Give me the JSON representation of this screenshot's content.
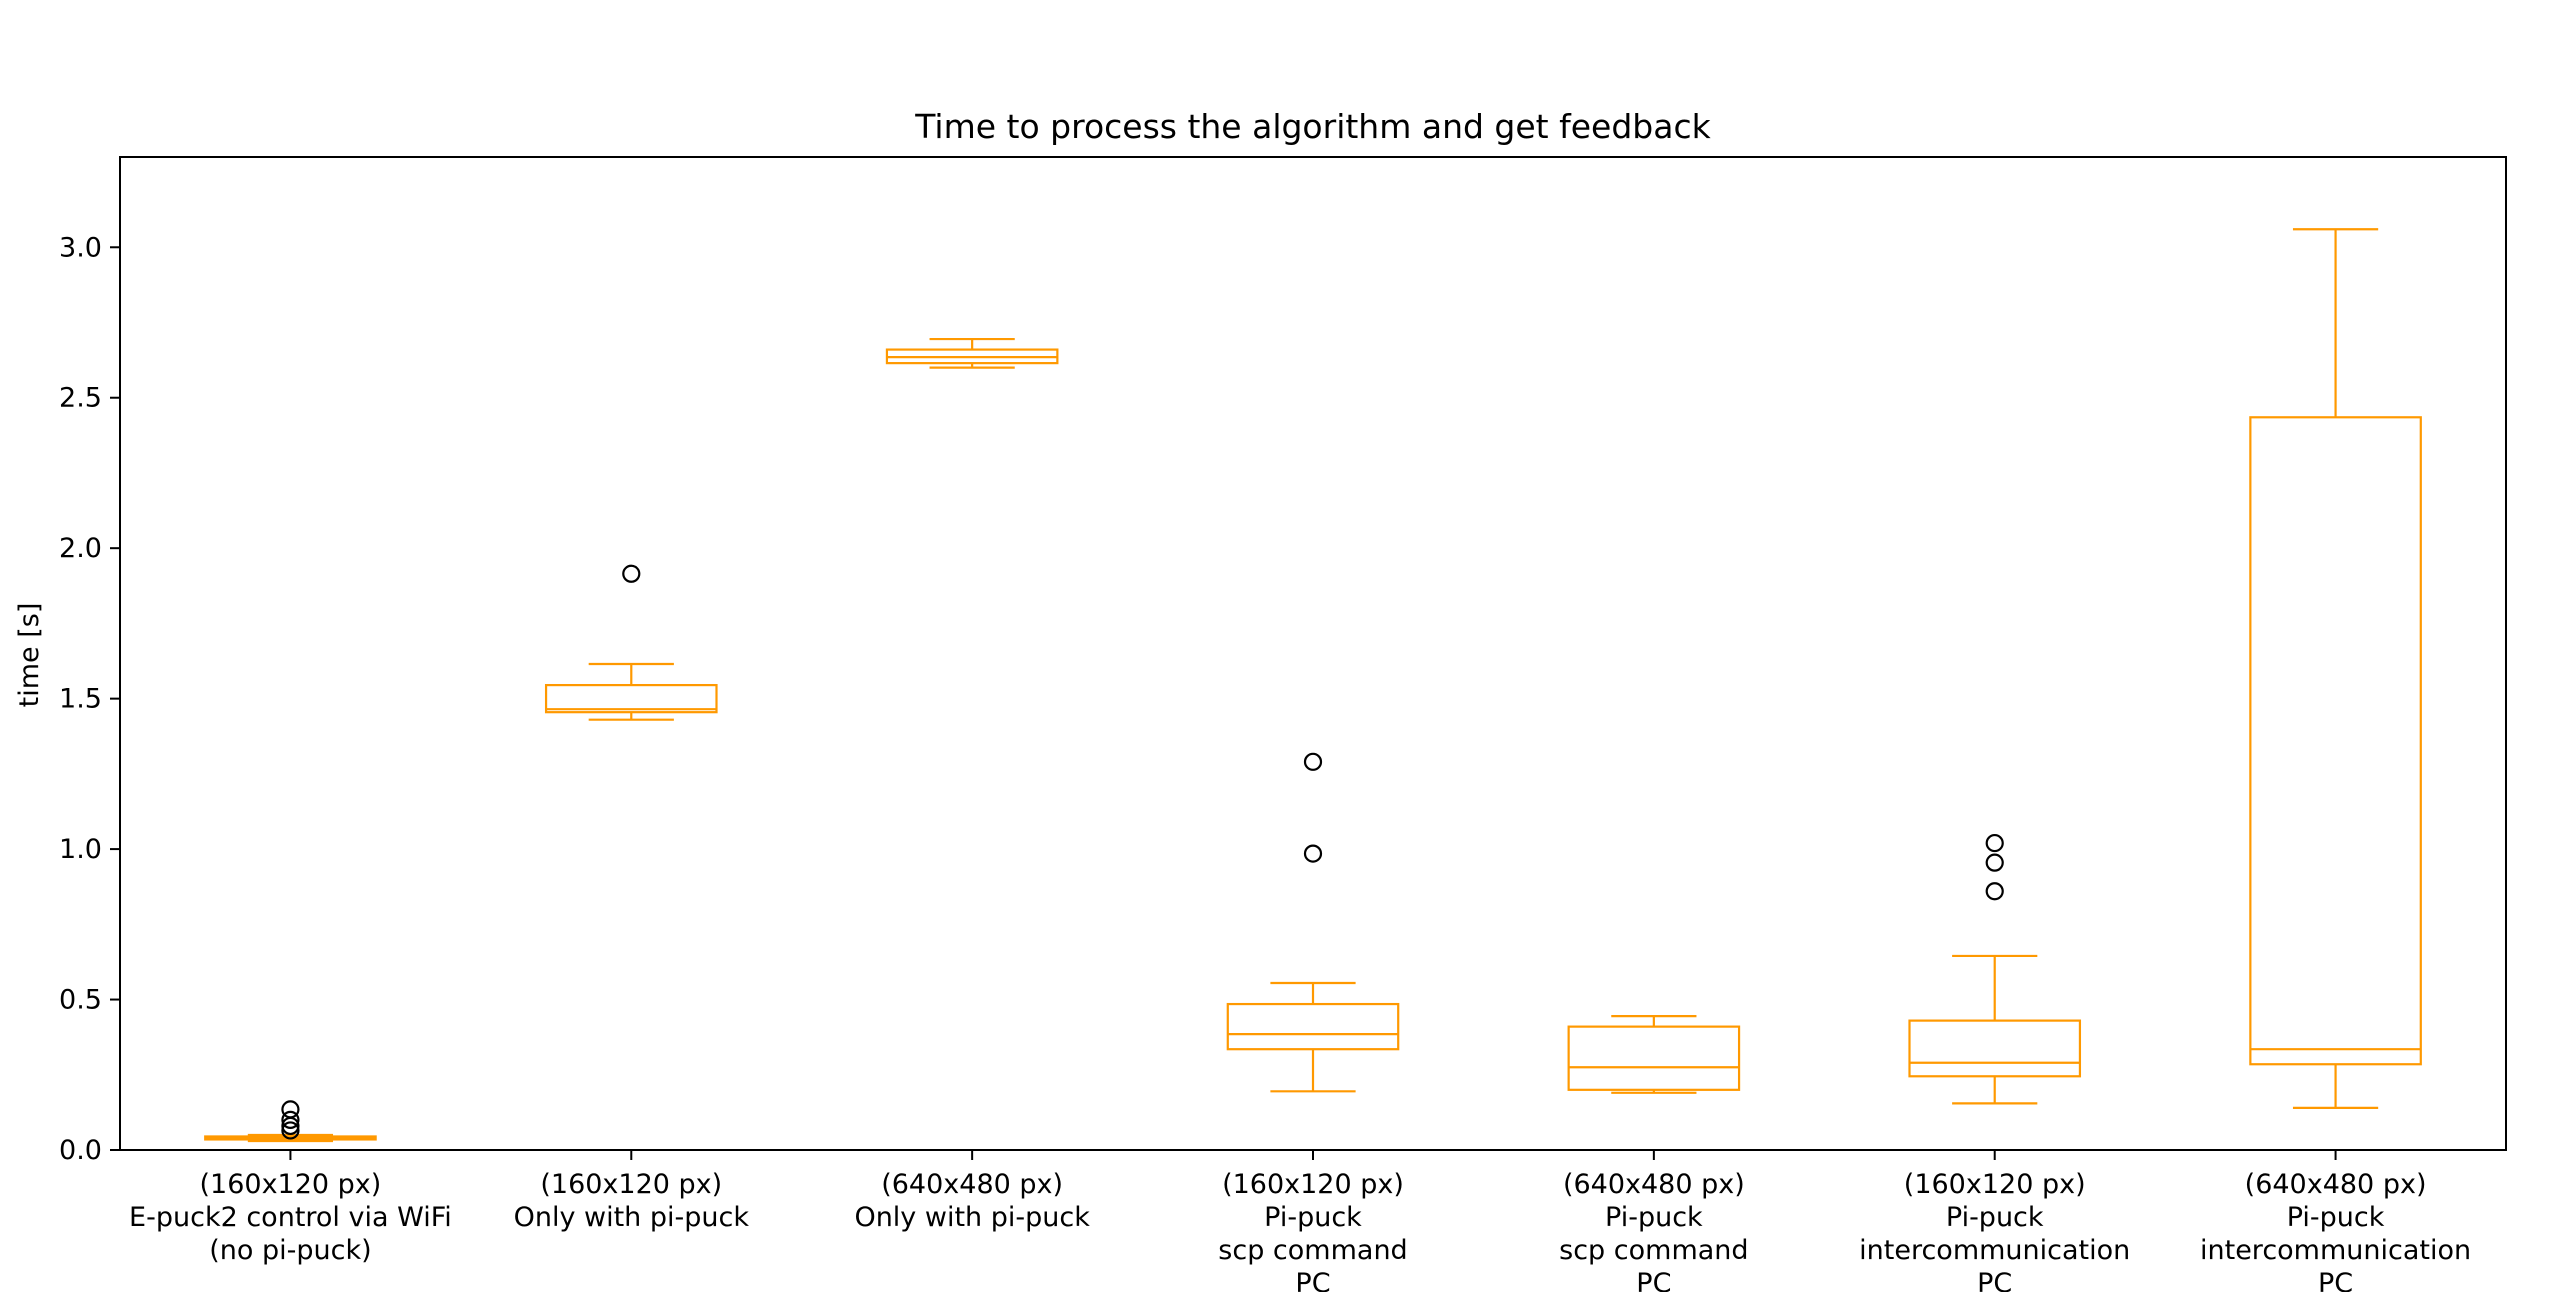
{
  "chart_data": {
    "type": "box",
    "title": "Time to process the algorithm and get feedback",
    "xlabel": "",
    "ylabel": "time [s]",
    "ylim": [
      0.0,
      3.3
    ],
    "yticks": [
      "0.0",
      "0.5",
      "1.0",
      "1.5",
      "2.0",
      "2.5",
      "3.0"
    ],
    "grid": false,
    "box_color": "#ff9900",
    "outlier_color": "#000000",
    "categories": [
      [
        "(160x120 px)",
        "E-puck2 control via WiFi",
        "(no pi-puck)"
      ],
      [
        "(160x120 px)",
        "Only with pi-puck"
      ],
      [
        "(640x480 px)",
        "Only with pi-puck"
      ],
      [
        "(160x120 px)",
        "Pi-puck",
        "scp command",
        "PC"
      ],
      [
        "(640x480 px)",
        "Pi-puck",
        "scp command",
        "PC"
      ],
      [
        "(160x120 px)",
        "Pi-puck",
        "intercommunication",
        "PC"
      ],
      [
        "(640x480 px)",
        "Pi-puck",
        "intercommunication",
        "PC"
      ]
    ],
    "boxes": [
      {
        "whisker_low": 0.03,
        "q1": 0.035,
        "median": 0.04,
        "q3": 0.045,
        "whisker_high": 0.05,
        "outliers": [
          0.065,
          0.08,
          0.1,
          0.135
        ]
      },
      {
        "whisker_low": 1.43,
        "q1": 1.455,
        "median": 1.465,
        "q3": 1.545,
        "whisker_high": 1.615,
        "outliers": [
          1.915
        ]
      },
      {
        "whisker_low": 2.6,
        "q1": 2.615,
        "median": 2.635,
        "q3": 2.66,
        "whisker_high": 2.695,
        "outliers": []
      },
      {
        "whisker_low": 0.195,
        "q1": 0.335,
        "median": 0.385,
        "q3": 0.485,
        "whisker_high": 0.555,
        "outliers": [
          0.985,
          1.29
        ]
      },
      {
        "whisker_low": 0.19,
        "q1": 0.2,
        "median": 0.275,
        "q3": 0.41,
        "whisker_high": 0.445,
        "outliers": []
      },
      {
        "whisker_low": 0.155,
        "q1": 0.245,
        "median": 0.29,
        "q3": 0.43,
        "whisker_high": 0.645,
        "outliers": [
          0.86,
          0.955,
          1.02
        ]
      },
      {
        "whisker_low": 0.14,
        "q1": 0.285,
        "median": 0.335,
        "q3": 2.435,
        "whisker_high": 3.06,
        "outliers": []
      }
    ]
  }
}
